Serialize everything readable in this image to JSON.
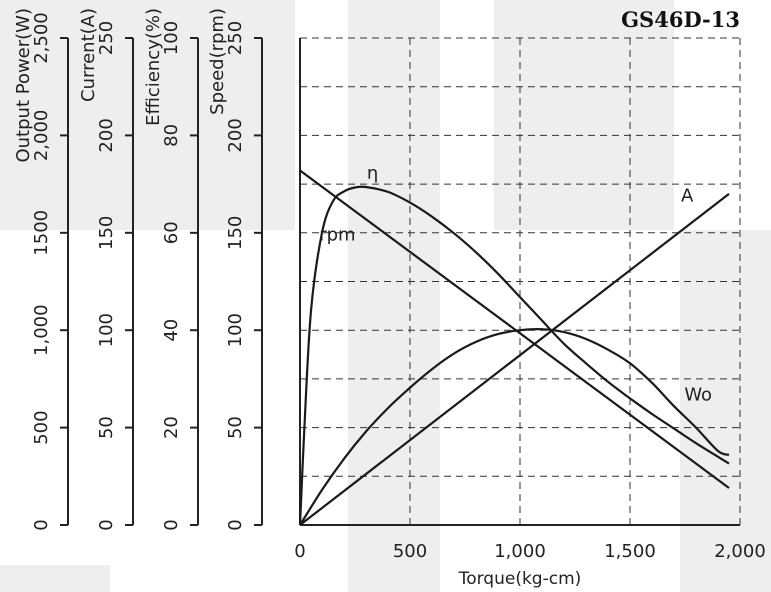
{
  "chart_data": {
    "type": "line",
    "title": "GS46D-13",
    "xlabel": "Torque(kg-cm)",
    "xlim": [
      0,
      2000
    ],
    "x_ticks": [
      "0",
      "500",
      "1,000",
      "1,500",
      "2,000"
    ],
    "y_axes": [
      {
        "label": "Output Power(W)",
        "range": [
          0,
          2500
        ],
        "ticks": [
          "0",
          "500",
          "1,000",
          "1500",
          "2,000",
          "2,500"
        ]
      },
      {
        "label": "Current(A)",
        "range": [
          0,
          250
        ],
        "ticks": [
          "0",
          "50",
          "100",
          "150",
          "200",
          "250"
        ]
      },
      {
        "label": "Efficiency(%)",
        "range": [
          0,
          100
        ],
        "ticks": [
          "0",
          "20",
          "40",
          "60",
          "80",
          "100"
        ]
      },
      {
        "label": "Speed(rpm)",
        "range": [
          0,
          250
        ],
        "ticks": [
          "0",
          "50",
          "100",
          "150",
          "200",
          "250"
        ]
      }
    ],
    "grid": true,
    "series": [
      {
        "name": "η",
        "axis": 2,
        "x": [
          0,
          20,
          50,
          100,
          150,
          200,
          250,
          300,
          400,
          500,
          600,
          700,
          800,
          900,
          1000,
          1100,
          1200,
          1300,
          1400,
          1500,
          1600,
          1700,
          1800,
          1900,
          1950
        ],
        "y": [
          0,
          20,
          44,
          60,
          66.5,
          68.5,
          69.3,
          69.4,
          68.4,
          66.2,
          63.3,
          59.9,
          56,
          51.6,
          46.8,
          42,
          37.2,
          33.2,
          29.4,
          26,
          22.8,
          19.8,
          16.8,
          14,
          12.6
        ],
        "label_pos": [
          330,
          71
        ]
      },
      {
        "name": "rpm",
        "axis": 3,
        "x": [
          0,
          1950
        ],
        "y": [
          182,
          19
        ],
        "label_pos": [
          170,
          146
        ]
      },
      {
        "name": "A",
        "axis": 1,
        "x": [
          0,
          1950
        ],
        "y": [
          0,
          170
        ],
        "label_pos": [
          1760,
          166
        ]
      },
      {
        "name": "Wo",
        "axis": 0,
        "x": [
          0,
          100,
          200,
          300,
          400,
          500,
          600,
          700,
          800,
          900,
          1000,
          1100,
          1200,
          1300,
          1400,
          1500,
          1600,
          1700,
          1800,
          1900,
          1950
        ],
        "y": [
          0,
          180,
          340,
          480,
          600,
          705,
          800,
          880,
          940,
          980,
          1000,
          1005,
          990,
          955,
          900,
          830,
          730,
          610,
          500,
          380,
          360
        ],
        "label_pos": [
          1810,
          640
        ]
      }
    ]
  }
}
